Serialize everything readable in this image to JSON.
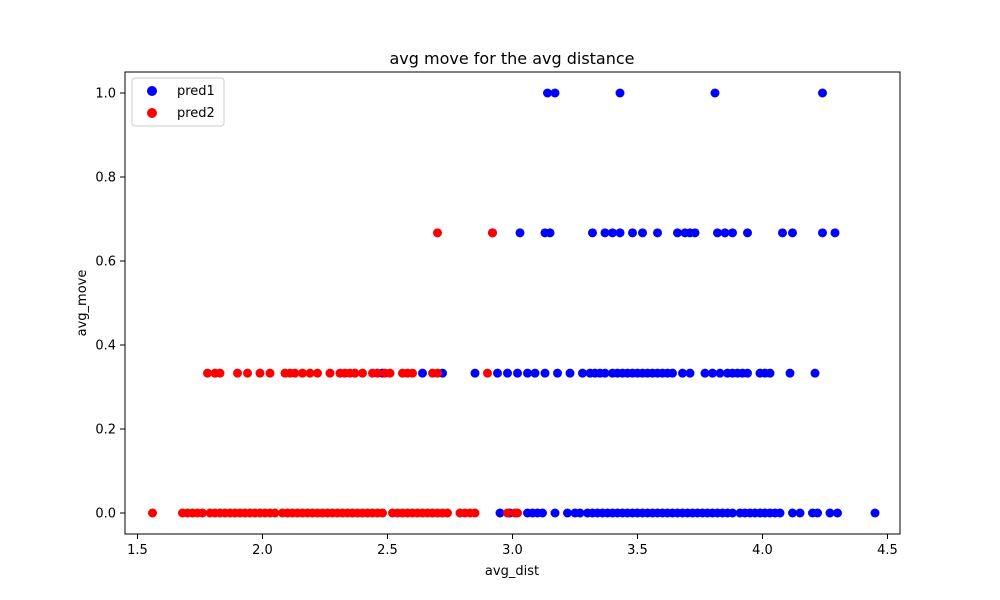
{
  "chart_data": {
    "type": "scatter",
    "title": "avg move for the avg distance",
    "xlabel": "avg_dist",
    "ylabel": "avg_move",
    "xlim": [
      1.45,
      4.55
    ],
    "ylim": [
      -0.05,
      1.05
    ],
    "xticks": [
      1.5,
      2.0,
      2.5,
      3.0,
      3.5,
      4.0,
      4.5
    ],
    "xtick_labels": [
      "1.5",
      "2.0",
      "2.5",
      "3.0",
      "3.5",
      "4.0",
      "4.5"
    ],
    "yticks": [
      0.0,
      0.2,
      0.4,
      0.6,
      0.8,
      1.0
    ],
    "ytick_labels": [
      "0.0",
      "0.2",
      "0.4",
      "0.6",
      "0.8",
      "1.0"
    ],
    "grid": false,
    "legend": "upper-left",
    "series": [
      {
        "name": "pred1",
        "color": "#0000ff",
        "points": [
          [
            3.14,
            1.0
          ],
          [
            3.17,
            1.0
          ],
          [
            3.43,
            1.0
          ],
          [
            3.81,
            1.0
          ],
          [
            4.24,
            1.0
          ],
          [
            2.92,
            0.667
          ],
          [
            3.03,
            0.667
          ],
          [
            3.13,
            0.667
          ],
          [
            3.15,
            0.667
          ],
          [
            3.32,
            0.667
          ],
          [
            3.37,
            0.667
          ],
          [
            3.4,
            0.667
          ],
          [
            3.43,
            0.667
          ],
          [
            3.48,
            0.667
          ],
          [
            3.52,
            0.667
          ],
          [
            3.58,
            0.667
          ],
          [
            3.66,
            0.667
          ],
          [
            3.69,
            0.667
          ],
          [
            3.71,
            0.667
          ],
          [
            3.73,
            0.667
          ],
          [
            3.82,
            0.667
          ],
          [
            3.85,
            0.667
          ],
          [
            3.88,
            0.667
          ],
          [
            3.94,
            0.667
          ],
          [
            4.08,
            0.667
          ],
          [
            4.12,
            0.667
          ],
          [
            4.24,
            0.667
          ],
          [
            4.29,
            0.667
          ],
          [
            2.48,
            0.333
          ],
          [
            2.64,
            0.333
          ],
          [
            2.72,
            0.333
          ],
          [
            2.85,
            0.333
          ],
          [
            2.94,
            0.333
          ],
          [
            2.98,
            0.333
          ],
          [
            3.02,
            0.333
          ],
          [
            3.06,
            0.333
          ],
          [
            3.09,
            0.333
          ],
          [
            3.13,
            0.333
          ],
          [
            3.18,
            0.333
          ],
          [
            3.23,
            0.333
          ],
          [
            3.28,
            0.333
          ],
          [
            3.31,
            0.333
          ],
          [
            3.33,
            0.333
          ],
          [
            3.35,
            0.333
          ],
          [
            3.37,
            0.333
          ],
          [
            3.4,
            0.333
          ],
          [
            3.42,
            0.333
          ],
          [
            3.44,
            0.333
          ],
          [
            3.46,
            0.333
          ],
          [
            3.48,
            0.333
          ],
          [
            3.5,
            0.333
          ],
          [
            3.52,
            0.333
          ],
          [
            3.54,
            0.333
          ],
          [
            3.56,
            0.333
          ],
          [
            3.58,
            0.333
          ],
          [
            3.6,
            0.333
          ],
          [
            3.62,
            0.333
          ],
          [
            3.64,
            0.333
          ],
          [
            3.68,
            0.333
          ],
          [
            3.71,
            0.333
          ],
          [
            3.77,
            0.333
          ],
          [
            3.8,
            0.333
          ],
          [
            3.83,
            0.333
          ],
          [
            3.86,
            0.333
          ],
          [
            3.88,
            0.333
          ],
          [
            3.9,
            0.333
          ],
          [
            3.92,
            0.333
          ],
          [
            3.94,
            0.333
          ],
          [
            3.99,
            0.333
          ],
          [
            4.01,
            0.333
          ],
          [
            4.03,
            0.333
          ],
          [
            4.11,
            0.333
          ],
          [
            4.21,
            0.333
          ],
          [
            2.95,
            0.0
          ],
          [
            2.99,
            0.0
          ],
          [
            3.06,
            0.0
          ],
          [
            3.08,
            0.0
          ],
          [
            3.1,
            0.0
          ],
          [
            3.12,
            0.0
          ],
          [
            3.17,
            0.0
          ],
          [
            3.22,
            0.0
          ],
          [
            3.25,
            0.0
          ],
          [
            3.27,
            0.0
          ],
          [
            3.3,
            0.0
          ],
          [
            3.32,
            0.0
          ],
          [
            3.34,
            0.0
          ],
          [
            3.36,
            0.0
          ],
          [
            3.38,
            0.0
          ],
          [
            3.4,
            0.0
          ],
          [
            3.42,
            0.0
          ],
          [
            3.44,
            0.0
          ],
          [
            3.46,
            0.0
          ],
          [
            3.48,
            0.0
          ],
          [
            3.5,
            0.0
          ],
          [
            3.52,
            0.0
          ],
          [
            3.54,
            0.0
          ],
          [
            3.56,
            0.0
          ],
          [
            3.58,
            0.0
          ],
          [
            3.6,
            0.0
          ],
          [
            3.62,
            0.0
          ],
          [
            3.64,
            0.0
          ],
          [
            3.66,
            0.0
          ],
          [
            3.68,
            0.0
          ],
          [
            3.7,
            0.0
          ],
          [
            3.72,
            0.0
          ],
          [
            3.74,
            0.0
          ],
          [
            3.76,
            0.0
          ],
          [
            3.78,
            0.0
          ],
          [
            3.8,
            0.0
          ],
          [
            3.82,
            0.0
          ],
          [
            3.84,
            0.0
          ],
          [
            3.86,
            0.0
          ],
          [
            3.88,
            0.0
          ],
          [
            3.91,
            0.0
          ],
          [
            3.93,
            0.0
          ],
          [
            3.95,
            0.0
          ],
          [
            3.97,
            0.0
          ],
          [
            3.99,
            0.0
          ],
          [
            4.01,
            0.0
          ],
          [
            4.03,
            0.0
          ],
          [
            4.05,
            0.0
          ],
          [
            4.07,
            0.0
          ],
          [
            4.12,
            0.0
          ],
          [
            4.15,
            0.0
          ],
          [
            4.2,
            0.0
          ],
          [
            4.22,
            0.0
          ],
          [
            4.27,
            0.0
          ],
          [
            4.3,
            0.0
          ],
          [
            4.45,
            0.0
          ]
        ]
      },
      {
        "name": "pred2",
        "color": "#ff0000",
        "points": [
          [
            2.7,
            0.667
          ],
          [
            2.92,
            0.667
          ],
          [
            1.78,
            0.333
          ],
          [
            1.81,
            0.333
          ],
          [
            1.83,
            0.333
          ],
          [
            1.9,
            0.333
          ],
          [
            1.94,
            0.333
          ],
          [
            1.99,
            0.333
          ],
          [
            2.03,
            0.333
          ],
          [
            2.09,
            0.333
          ],
          [
            2.11,
            0.333
          ],
          [
            2.13,
            0.333
          ],
          [
            2.16,
            0.333
          ],
          [
            2.19,
            0.333
          ],
          [
            2.22,
            0.333
          ],
          [
            2.27,
            0.333
          ],
          [
            2.31,
            0.333
          ],
          [
            2.33,
            0.333
          ],
          [
            2.35,
            0.333
          ],
          [
            2.37,
            0.333
          ],
          [
            2.4,
            0.333
          ],
          [
            2.44,
            0.333
          ],
          [
            2.46,
            0.333
          ],
          [
            2.49,
            0.333
          ],
          [
            2.51,
            0.333
          ],
          [
            2.56,
            0.333
          ],
          [
            2.58,
            0.333
          ],
          [
            2.6,
            0.333
          ],
          [
            2.68,
            0.333
          ],
          [
            2.7,
            0.333
          ],
          [
            2.9,
            0.333
          ],
          [
            1.56,
            0.0
          ],
          [
            1.68,
            0.0
          ],
          [
            1.7,
            0.0
          ],
          [
            1.72,
            0.0
          ],
          [
            1.74,
            0.0
          ],
          [
            1.76,
            0.0
          ],
          [
            1.79,
            0.0
          ],
          [
            1.81,
            0.0
          ],
          [
            1.83,
            0.0
          ],
          [
            1.85,
            0.0
          ],
          [
            1.87,
            0.0
          ],
          [
            1.89,
            0.0
          ],
          [
            1.91,
            0.0
          ],
          [
            1.93,
            0.0
          ],
          [
            1.95,
            0.0
          ],
          [
            1.97,
            0.0
          ],
          [
            1.99,
            0.0
          ],
          [
            2.01,
            0.0
          ],
          [
            2.03,
            0.0
          ],
          [
            2.05,
            0.0
          ],
          [
            2.08,
            0.0
          ],
          [
            2.1,
            0.0
          ],
          [
            2.12,
            0.0
          ],
          [
            2.14,
            0.0
          ],
          [
            2.16,
            0.0
          ],
          [
            2.18,
            0.0
          ],
          [
            2.2,
            0.0
          ],
          [
            2.22,
            0.0
          ],
          [
            2.24,
            0.0
          ],
          [
            2.26,
            0.0
          ],
          [
            2.28,
            0.0
          ],
          [
            2.3,
            0.0
          ],
          [
            2.32,
            0.0
          ],
          [
            2.34,
            0.0
          ],
          [
            2.36,
            0.0
          ],
          [
            2.38,
            0.0
          ],
          [
            2.4,
            0.0
          ],
          [
            2.42,
            0.0
          ],
          [
            2.44,
            0.0
          ],
          [
            2.46,
            0.0
          ],
          [
            2.48,
            0.0
          ],
          [
            2.52,
            0.0
          ],
          [
            2.54,
            0.0
          ],
          [
            2.56,
            0.0
          ],
          [
            2.58,
            0.0
          ],
          [
            2.6,
            0.0
          ],
          [
            2.62,
            0.0
          ],
          [
            2.64,
            0.0
          ],
          [
            2.66,
            0.0
          ],
          [
            2.68,
            0.0
          ],
          [
            2.7,
            0.0
          ],
          [
            2.72,
            0.0
          ],
          [
            2.74,
            0.0
          ],
          [
            2.79,
            0.0
          ],
          [
            2.81,
            0.0
          ],
          [
            2.83,
            0.0
          ],
          [
            2.85,
            0.0
          ],
          [
            2.98,
            0.0
          ],
          [
            3.01,
            0.0
          ],
          [
            3.02,
            0.0
          ]
        ]
      }
    ]
  }
}
